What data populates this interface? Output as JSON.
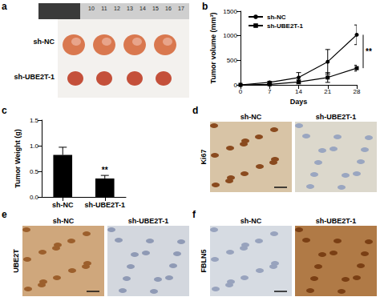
{
  "image_panels": [
    {
      "panel": "a",
      "labels": [
        "sh-NC",
        "sh-UBE2T-1"
      ],
      "ruler": [
        "10",
        "11",
        "12",
        "13",
        "14",
        "15",
        "16",
        "17"
      ]
    },
    {
      "panel": "d",
      "stain": "Ki67",
      "labels": [
        "sh-NC",
        "sh-UBE2T-1"
      ]
    },
    {
      "panel": "e",
      "stain": "UBE2T",
      "labels": [
        "sh-NC",
        "sh-UBE2T-1"
      ]
    },
    {
      "panel": "f",
      "stain": "FBLN5",
      "labels": [
        "sh-NC",
        "sh-UBE2T-1"
      ]
    }
  ],
  "chart_data": [
    {
      "panel": "b",
      "type": "line",
      "x": [
        0,
        7,
        14,
        21,
        28
      ],
      "xlim": [
        0,
        28
      ],
      "xticks": [
        0,
        7,
        14,
        21,
        28
      ],
      "x_label": "Days",
      "y_label": "Tumor volume (mm³)",
      "ylim": [
        0,
        1500
      ],
      "yticks": [
        0,
        500,
        1000,
        1500
      ],
      "grid": false,
      "legend": "upper left",
      "annotation": "**",
      "series": [
        {
          "name": "sh-NC",
          "color": "#000000",
          "marker": "circle",
          "values": [
            0,
            50,
            150,
            470,
            1020
          ],
          "errors": [
            0,
            20,
            100,
            250,
            200
          ]
        },
        {
          "name": "sh-UBE2T-1",
          "color": "#000000",
          "marker": "square",
          "values": [
            0,
            10,
            60,
            150,
            340
          ],
          "errors": [
            0,
            10,
            40,
            100,
            60
          ]
        }
      ]
    },
    {
      "panel": "c",
      "type": "bar",
      "categories": [
        "sh-NC",
        "sh-UBE2T-1"
      ],
      "values": [
        0.82,
        0.36
      ],
      "errors": [
        0.15,
        0.06
      ],
      "color": "#000000",
      "y_label": "Tumor Weight (g)",
      "ylim": [
        0,
        1.5
      ],
      "yticks": [
        {
          "value": 0,
          "label": "0.0"
        },
        {
          "value": 0.5,
          "label": "0.5"
        },
        {
          "value": 1,
          "label": "1.0"
        },
        {
          "value": 1.5,
          "label": "1.5"
        }
      ],
      "grid": false,
      "annotation": "**"
    }
  ]
}
